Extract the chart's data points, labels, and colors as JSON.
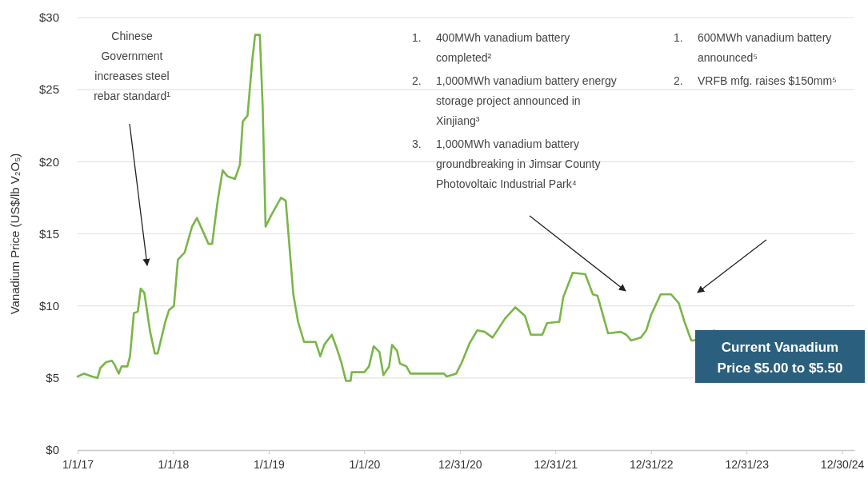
{
  "chart_data": {
    "type": "line",
    "ylabel": "Vanadium Price (US$/lb V₂O₅)",
    "x": [
      "2017-01-01",
      "2017-01-26",
      "2017-02-25",
      "2017-03-18",
      "2017-03-29",
      "2017-04-20",
      "2017-05-12",
      "2017-05-23",
      "2017-06-07",
      "2017-06-18",
      "2017-07-10",
      "2017-07-20",
      "2017-08-04",
      "2017-08-19",
      "2017-08-30",
      "2017-09-13",
      "2017-10-05",
      "2017-10-23",
      "2017-11-03",
      "2017-12-02",
      "2017-12-16",
      "2018-01-04",
      "2018-01-19",
      "2018-02-14",
      "2018-03-14",
      "2018-04-02",
      "2018-04-24",
      "2018-05-16",
      "2018-05-30",
      "2018-06-10",
      "2018-06-21",
      "2018-07-09",
      "2018-07-27",
      "2018-08-25",
      "2018-09-13",
      "2018-09-24",
      "2018-10-12",
      "2018-10-30",
      "2018-11-10",
      "2018-11-28",
      "2018-12-09",
      "2018-12-20",
      "2019-01-08",
      "2019-01-26",
      "2019-02-17",
      "2019-03-07",
      "2019-04-05",
      "2019-04-23",
      "2019-05-16",
      "2019-06-29",
      "2019-07-17",
      "2019-08-01",
      "2019-08-30",
      "2019-09-17",
      "2019-10-05",
      "2019-10-23",
      "2019-11-10",
      "2019-11-14",
      "2020-01-01",
      "2020-01-19",
      "2020-02-06",
      "2020-02-28",
      "2020-03-14",
      "2020-04-05",
      "2020-04-16",
      "2020-05-05",
      "2020-05-16",
      "2020-06-10",
      "2020-06-25",
      "2020-10-31",
      "2020-11-11",
      "2020-12-17",
      "2021-01-08",
      "2021-02-06",
      "2021-03-07",
      "2021-04-05",
      "2021-05-05",
      "2021-06-21",
      "2021-07-31",
      "2021-09-06",
      "2021-09-28",
      "2021-11-11",
      "2021-11-29",
      "2022-01-15",
      "2022-01-30",
      "2022-03-07",
      "2022-04-24",
      "2022-05-23",
      "2022-06-10",
      "2022-07-20",
      "2022-09-06",
      "2022-09-28",
      "2022-10-16",
      "2022-11-22",
      "2022-12-13",
      "2023-01-01",
      "2023-02-06",
      "2023-03-18",
      "2023-04-16",
      "2023-05-08",
      "2023-06-03",
      "2023-06-14",
      "2023-08-30"
    ],
    "series": [
      {
        "color": "#7ab648",
        "values": [
          5.1,
          5.3,
          5.1,
          5.0,
          5.7,
          6.1,
          6.2,
          5.9,
          5.3,
          5.8,
          5.8,
          6.5,
          9.5,
          9.6,
          11.2,
          10.9,
          8.2,
          6.7,
          6.7,
          8.9,
          9.7,
          10.0,
          13.2,
          13.7,
          15.5,
          16.1,
          15.2,
          14.3,
          14.3,
          15.9,
          17.4,
          19.4,
          19.0,
          18.8,
          19.8,
          22.8,
          23.2,
          27.0,
          28.8,
          28.8,
          23.8,
          15.5,
          16.2,
          16.8,
          17.5,
          17.3,
          10.8,
          8.9,
          7.5,
          7.5,
          6.5,
          7.3,
          8.0,
          7.1,
          6.1,
          4.8,
          4.8,
          5.4,
          5.4,
          5.8,
          7.2,
          6.8,
          5.2,
          5.8,
          7.3,
          6.9,
          6.0,
          5.8,
          5.3,
          5.3,
          5.1,
          5.3,
          6.1,
          7.4,
          8.3,
          8.2,
          7.8,
          9.1,
          9.9,
          9.3,
          8.0,
          8.0,
          8.8,
          8.9,
          10.6,
          12.3,
          12.2,
          10.8,
          10.7,
          8.1,
          8.2,
          8.0,
          7.6,
          7.8,
          8.3,
          9.4,
          10.8,
          10.8,
          10.2,
          8.9,
          7.6,
          7.6,
          8.3
        ]
      }
    ],
    "xlim": [
      "2017-01-01",
      "2025-02-15"
    ],
    "xticks": [
      {
        "value": "2017-01-01",
        "label": "1/1/17"
      },
      {
        "value": "2018-01-01",
        "label": "1/1/18"
      },
      {
        "value": "2019-01-01",
        "label": "1/1/19"
      },
      {
        "value": "2020-01-01",
        "label": "1/1/20"
      },
      {
        "value": "2020-12-31",
        "label": "12/31/20"
      },
      {
        "value": "2021-12-31",
        "label": "12/31/21"
      },
      {
        "value": "2022-12-31",
        "label": "12/31/22"
      },
      {
        "value": "2023-12-31",
        "label": "12/31/23"
      },
      {
        "value": "2024-12-30",
        "label": "12/30/24"
      }
    ],
    "ylim": [
      0,
      30
    ],
    "yticks": [
      {
        "value": 0,
        "label": "$0"
      },
      {
        "value": 5,
        "label": "$5"
      },
      {
        "value": 10,
        "label": "$10"
      },
      {
        "value": 15,
        "label": "$15"
      },
      {
        "value": 20,
        "label": "$20"
      },
      {
        "value": 25,
        "label": "$25"
      },
      {
        "value": 30,
        "label": "$30"
      }
    ],
    "grid": "y",
    "annotations": [
      "Chinese Government increases steel rebar standard¹",
      "1. 400MWh vanadium battery completed²",
      "2. 1,000MWh vanadium battery energy storage project announced in Xinjiang³",
      "3. 1,000MWh vanadium battery groundbreaking in Jimsar County Photovoltaic Industrial Park⁴",
      "1. 600MWh vanadium battery announced⁵",
      "2. VRFB mfg. raises $150mm⁵",
      "Current Vanadium Price $5.00 to $5.50"
    ]
  }
}
